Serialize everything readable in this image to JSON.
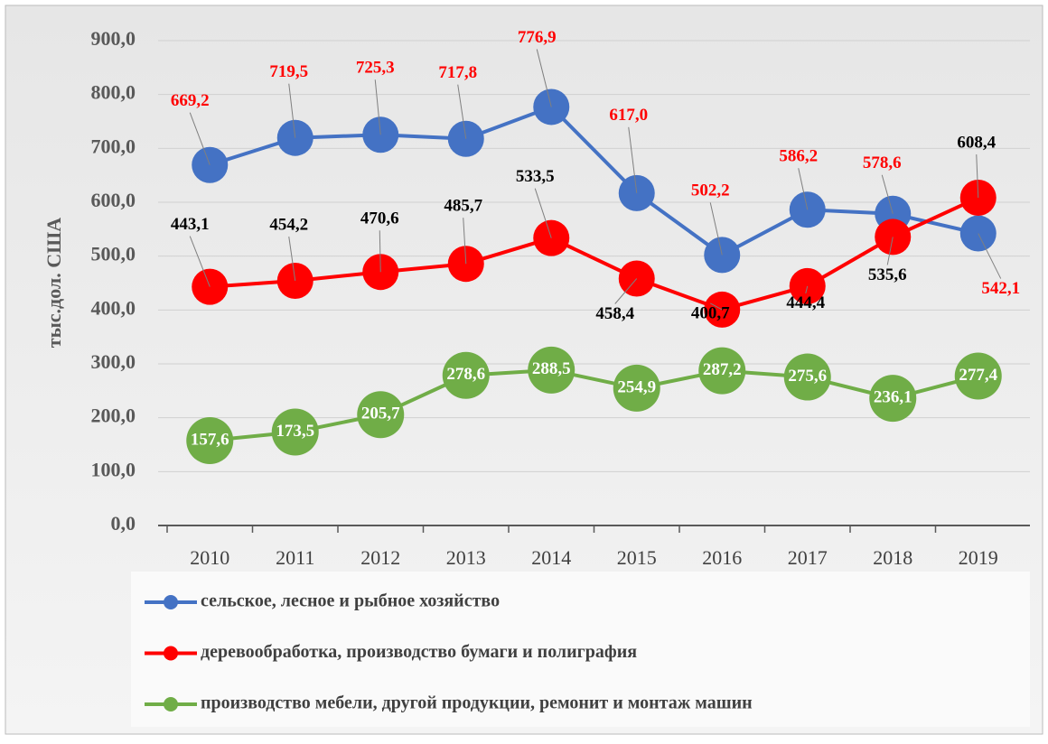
{
  "chart_data": {
    "type": "line",
    "y_label": "тыс.дол. США",
    "categories": [
      "2010",
      "2011",
      "2012",
      "2013",
      "2014",
      "2015",
      "2016",
      "2017",
      "2018",
      "2019"
    ],
    "series": [
      {
        "name": "сельское, лесное и рыбное хозяйство",
        "color": "#4472c4",
        "values": [
          669.2,
          719.5,
          725.3,
          717.8,
          776.9,
          617.0,
          502.2,
          586.2,
          578.6,
          542.1
        ],
        "value_labels": [
          "669,2",
          "719,5",
          "725,3",
          "717,8",
          "776,9",
          "617,0",
          "502,2",
          "586,2",
          "578,6",
          "542,1"
        ]
      },
      {
        "name": "деревообработка, производство бумаги и полиграфия",
        "color": "#ff0000",
        "values": [
          443.1,
          454.2,
          470.6,
          485.7,
          533.5,
          458.4,
          400.7,
          444.4,
          535.6,
          608.4
        ],
        "value_labels": [
          "443,1",
          "454,2",
          "470,6",
          "485,7",
          "533,5",
          "458,4",
          "400,7",
          "444,4",
          "535,6",
          "608,4"
        ]
      },
      {
        "name": "производство мебели, другой продукции,  ремонит и монтаж машин",
        "color": "#70ad47",
        "values": [
          157.6,
          173.5,
          205.7,
          278.6,
          288.5,
          254.9,
          287.2,
          275.6,
          236.1,
          277.4
        ],
        "value_labels": [
          "157,6",
          "173,5",
          "205,7",
          "278,6",
          "288,5",
          "254,9",
          "287,2",
          "275,6",
          "236,1",
          "277,4"
        ]
      }
    ],
    "ylim": [
      0,
      900
    ],
    "yticks": [
      {
        "value": 0,
        "label": "0,0"
      },
      {
        "value": 100,
        "label": "100,0"
      },
      {
        "value": 200,
        "label": "200,0"
      },
      {
        "value": 300,
        "label": "300,0"
      },
      {
        "value": 400,
        "label": "400,0"
      },
      {
        "value": 500,
        "label": "500,0"
      },
      {
        "value": 600,
        "label": "600,0"
      },
      {
        "value": 700,
        "label": "700,0"
      },
      {
        "value": 800,
        "label": "800,0"
      },
      {
        "value": 900,
        "label": "900,0"
      }
    ],
    "grid": true,
    "legend": "bottom"
  }
}
